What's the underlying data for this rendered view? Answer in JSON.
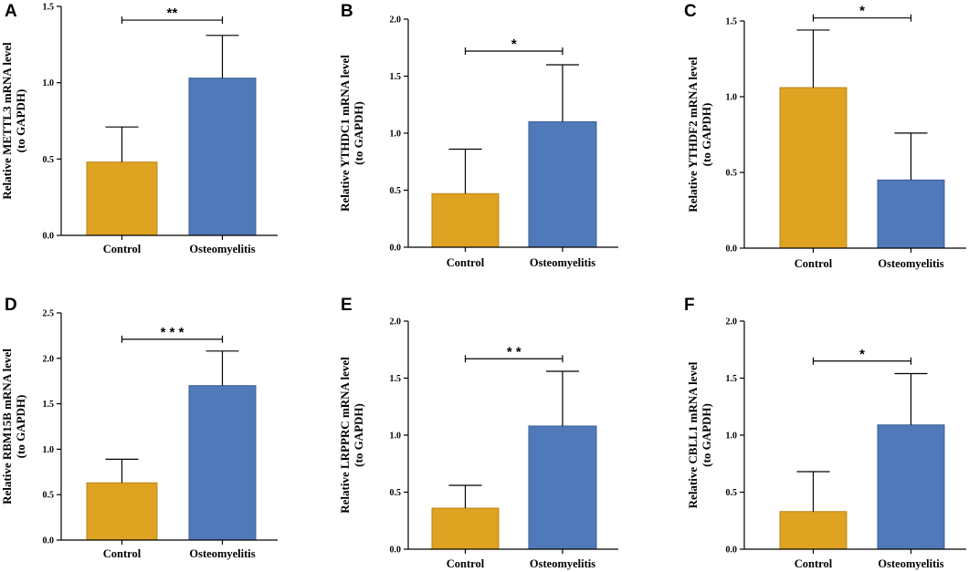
{
  "figure": {
    "palette": {
      "control": "#DEA321",
      "osteomyelitis": "#5079B9",
      "control_edge": "#B9861A",
      "osteomyelitis_edge": "#3D5F96"
    }
  },
  "chart_data": [
    {
      "type": "bar",
      "panel": "A",
      "categories": [
        "Control",
        "Osteomyelitis"
      ],
      "values": [
        0.48,
        1.03
      ],
      "errors": [
        0.23,
        0.28
      ],
      "ylabel_lines": [
        "Relative METTL3 mRNA level",
        "(to GAPDH)"
      ],
      "ylim": [
        0,
        1.5
      ],
      "yticks": [
        0.0,
        0.5,
        1.0,
        1.5
      ],
      "tick_labels": [
        "0.0",
        "0.5",
        "1.0",
        "1.5"
      ],
      "significance": "**",
      "sig_y": 1.41
    },
    {
      "type": "bar",
      "panel": "B",
      "categories": [
        "Control",
        "Osteomyelitis"
      ],
      "values": [
        0.47,
        1.1
      ],
      "errors": [
        0.39,
        0.5
      ],
      "ylabel_lines": [
        "Relative YTHDC1 mRNA level",
        "(to GAPDH)"
      ],
      "ylim": [
        0,
        2.0
      ],
      "yticks": [
        0.0,
        0.5,
        1.0,
        1.5,
        2.0
      ],
      "tick_labels": [
        "0.0",
        "0.5",
        "1.0",
        "1.5",
        "2.0"
      ],
      "significance": "*",
      "sig_y": 1.72
    },
    {
      "type": "bar",
      "panel": "C",
      "categories": [
        "Control",
        "Osteomyelitis"
      ],
      "values": [
        1.06,
        0.45
      ],
      "errors": [
        0.38,
        0.31
      ],
      "ylabel_lines": [
        "Relative YTHDF2 mRNA level",
        "(to GAPDH)"
      ],
      "ylim": [
        0,
        1.5
      ],
      "yticks": [
        0.0,
        0.5,
        1.0,
        1.5
      ],
      "tick_labels": [
        "0.0",
        "0.5",
        "1.0",
        "1.5"
      ],
      "significance": "*",
      "sig_y": 1.52
    },
    {
      "type": "bar",
      "panel": "D",
      "categories": [
        "Control",
        "Osteomyelitis"
      ],
      "values": [
        0.63,
        1.7
      ],
      "errors": [
        0.26,
        0.38
      ],
      "ylabel_lines": [
        "Relative RBM15B mRNA level",
        "(to GAPDH)"
      ],
      "ylim": [
        0,
        2.5
      ],
      "yticks": [
        0.0,
        0.5,
        1.0,
        1.5,
        2.0,
        2.5
      ],
      "tick_labels": [
        "0.0",
        "0.5",
        "1.0",
        "1.5",
        "2.0",
        "2.5"
      ],
      "significance": "* * *",
      "sig_y": 2.21
    },
    {
      "type": "bar",
      "panel": "E",
      "categories": [
        "Control",
        "Osteomyelitis"
      ],
      "values": [
        0.36,
        1.08
      ],
      "errors": [
        0.2,
        0.48
      ],
      "ylabel_lines": [
        "Relative LRPPRC mRNA level",
        "(to GAPDH)"
      ],
      "ylim": [
        0,
        2.0
      ],
      "yticks": [
        0.0,
        0.5,
        1.0,
        1.5,
        2.0
      ],
      "tick_labels": [
        "0.0",
        "0.5",
        "1.0",
        "1.5",
        "2.0"
      ],
      "significance": "* *",
      "sig_y": 1.67
    },
    {
      "type": "bar",
      "panel": "F",
      "categories": [
        "Control",
        "Osteomyelitis"
      ],
      "values": [
        0.33,
        1.09
      ],
      "errors": [
        0.35,
        0.45
      ],
      "ylabel_lines": [
        "Relative CBLL1 mRNA level",
        "(to GAPDH)"
      ],
      "ylim": [
        0,
        2.0
      ],
      "yticks": [
        0.0,
        0.5,
        1.0,
        1.5,
        2.0
      ],
      "tick_labels": [
        "0.0",
        "0.5",
        "1.0",
        "1.5",
        "2.0"
      ],
      "significance": "*",
      "sig_y": 1.65
    }
  ]
}
